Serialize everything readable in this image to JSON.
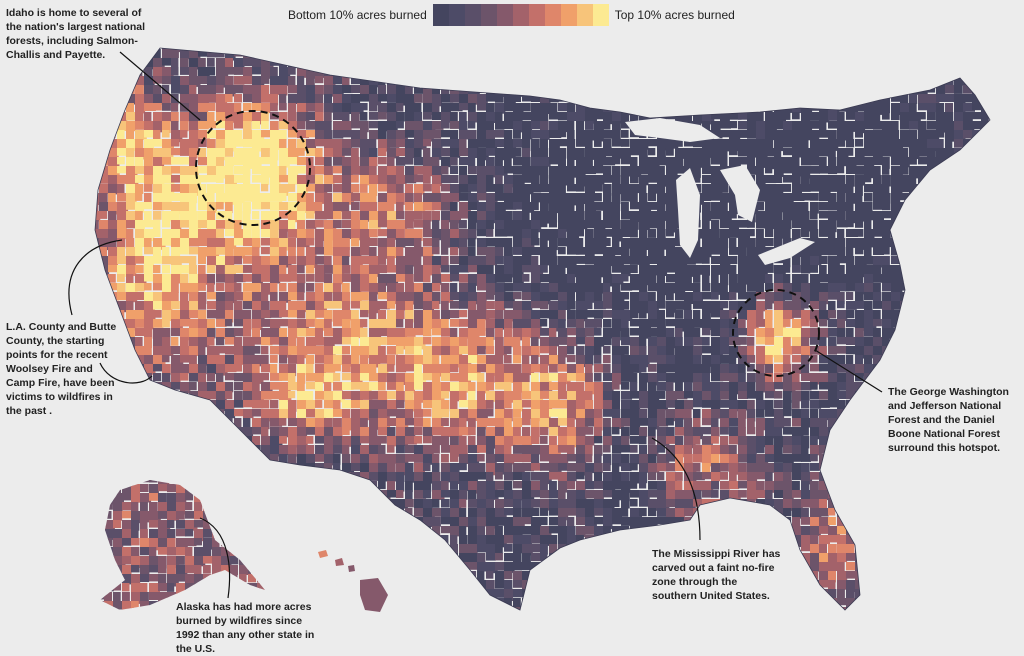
{
  "legend": {
    "low_label": "Bottom 10% acres burned",
    "high_label": "Top 10% acres burned",
    "colors": [
      "#44455f",
      "#4d4b67",
      "#5a4f69",
      "#6c546a",
      "#85596b",
      "#a3626a",
      "#c3706a",
      "#df866a",
      "#f0a06a",
      "#f7c47a",
      "#fcea92"
    ]
  },
  "annotations": {
    "idaho": "Idaho is home to several of the nation's largest national forests, including Salmon-Challis and Payette.",
    "la": "L.A. County and Butte County, the starting points for the recent Woolsey Fire and Camp Fire, have been victims to wildfires in the past .",
    "gw": "The George Washington and Jefferson National Forest and the Daniel Boone National Forest surround this hotspot.",
    "mississippi": "The Mississippi River has carved out a faint no-fire zone through the southern United States.",
    "alaska": "Alaska has had more acres burned by wildfires since 1992 than any other state in the U.S."
  }
}
